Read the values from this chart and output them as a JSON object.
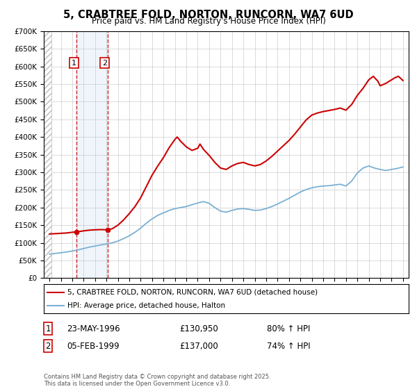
{
  "title": "5, CRABTREE FOLD, NORTON, RUNCORN, WA7 6UD",
  "subtitle": "Price paid vs. HM Land Registry's House Price Index (HPI)",
  "sale1_date": "23-MAY-1996",
  "sale1_price": 130950,
  "sale1_hpi": "80% ↑ HPI",
  "sale1_label": "1",
  "sale2_date": "05-FEB-1999",
  "sale2_price": 137000,
  "sale2_hpi": "74% ↑ HPI",
  "sale2_label": "2",
  "legend_line1": "5, CRABTREE FOLD, NORTON, RUNCORN, WA7 6UD (detached house)",
  "legend_line2": "HPI: Average price, detached house, Halton",
  "footer": "Contains HM Land Registry data © Crown copyright and database right 2025.\nThis data is licensed under the Open Government Licence v3.0.",
  "red_color": "#cc0000",
  "blue_color": "#7ab0d4",
  "ylim_min": 0,
  "ylim_max": 700000,
  "sale1_x": 1996.39,
  "sale2_x": 1999.09,
  "hpi_x": [
    1994,
    1994.5,
    1995,
    1995.5,
    1996,
    1996.5,
    1997,
    1997.5,
    1998,
    1998.5,
    1999,
    1999.5,
    2000,
    2000.5,
    2001,
    2001.5,
    2002,
    2002.5,
    2003,
    2003.5,
    2004,
    2004.5,
    2005,
    2005.5,
    2006,
    2006.5,
    2007,
    2007.5,
    2008,
    2008.5,
    2009,
    2009.5,
    2010,
    2010.5,
    2011,
    2011.5,
    2012,
    2012.5,
    2013,
    2013.5,
    2014,
    2014.5,
    2015,
    2015.5,
    2016,
    2016.5,
    2017,
    2017.5,
    2018,
    2018.5,
    2019,
    2019.5,
    2020,
    2020.5,
    2021,
    2021.5,
    2022,
    2022.5,
    2023,
    2023.5,
    2024,
    2024.5,
    2025
  ],
  "hpi_y": [
    68000,
    70000,
    72000,
    74000,
    77000,
    80000,
    84000,
    88000,
    91000,
    94000,
    97000,
    100000,
    105000,
    112000,
    120000,
    130000,
    142000,
    156000,
    168000,
    178000,
    185000,
    192000,
    197000,
    200000,
    203000,
    208000,
    213000,
    217000,
    212000,
    200000,
    190000,
    187000,
    192000,
    196000,
    197000,
    195000,
    192000,
    193000,
    197000,
    203000,
    210000,
    218000,
    226000,
    235000,
    244000,
    251000,
    256000,
    259000,
    261000,
    262000,
    264000,
    266000,
    261000,
    275000,
    298000,
    312000,
    318000,
    312000,
    308000,
    305000,
    308000,
    311000,
    315000
  ],
  "red_x": [
    1994,
    1994.5,
    1995,
    1995.5,
    1996,
    1996.39,
    1997,
    1997.5,
    1998,
    1998.5,
    1999.09,
    1999.5,
    2000,
    2000.5,
    2001,
    2001.5,
    2002,
    2002.5,
    2003,
    2003.5,
    2004,
    2004.5,
    2005,
    2005.2,
    2005.5,
    2006,
    2006.5,
    2007,
    2007.2,
    2007.5,
    2008,
    2008.5,
    2009,
    2009.5,
    2010,
    2010.5,
    2011,
    2011.5,
    2012,
    2012.5,
    2013,
    2013.5,
    2014,
    2014.5,
    2015,
    2015.5,
    2016,
    2016.5,
    2017,
    2017.5,
    2018,
    2018.5,
    2019,
    2019.5,
    2020,
    2020.5,
    2021,
    2021.5,
    2022,
    2022.4,
    2022.8,
    2023,
    2023.5,
    2024,
    2024.3,
    2024.6,
    2025
  ],
  "red_y": [
    125000,
    126000,
    127000,
    128000,
    130000,
    130950,
    134000,
    136000,
    137000,
    137500,
    137000,
    140000,
    150000,
    165000,
    183000,
    203000,
    228000,
    260000,
    292000,
    318000,
    342000,
    370000,
    393000,
    400000,
    388000,
    372000,
    362000,
    368000,
    380000,
    365000,
    348000,
    328000,
    312000,
    308000,
    318000,
    325000,
    328000,
    322000,
    318000,
    322000,
    332000,
    345000,
    360000,
    375000,
    390000,
    408000,
    428000,
    448000,
    462000,
    468000,
    472000,
    475000,
    478000,
    482000,
    476000,
    492000,
    518000,
    538000,
    562000,
    572000,
    558000,
    545000,
    552000,
    562000,
    568000,
    572000,
    560000
  ]
}
